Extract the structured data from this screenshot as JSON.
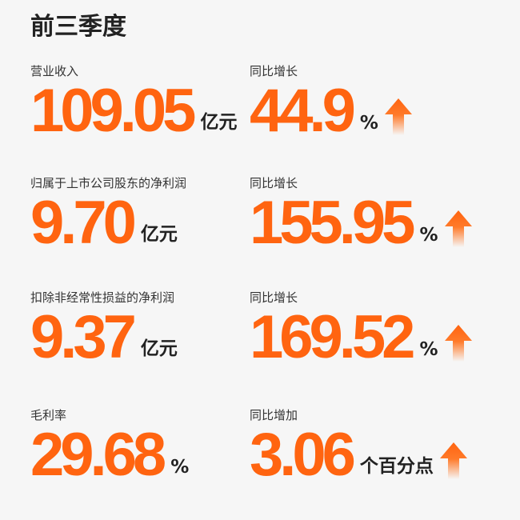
{
  "title": "前三季度",
  "accent_color": "#ff6410",
  "rows": [
    {
      "label": "营业收入",
      "value": "109.05",
      "unit": "亿元",
      "change_label": "同比增长",
      "change_value": "44.9",
      "change_unit": "%",
      "change_icon": "arrow-up-icon"
    },
    {
      "label": "归属于上市公司股东的净利润",
      "value": "9.70",
      "unit": "亿元",
      "change_label": "同比增长",
      "change_value": "155.95",
      "change_unit": "%",
      "change_icon": "arrow-up-icon"
    },
    {
      "label": "扣除非经常性损益的净利润",
      "value": "9.37",
      "unit": "亿元",
      "change_label": "同比增长",
      "change_value": "169.52",
      "change_unit": "%",
      "change_icon": "arrow-up-icon"
    },
    {
      "label": "毛利率",
      "value": "29.68",
      "unit": "%",
      "change_label": "同比增加",
      "change_value": "3.06",
      "change_unit": "个百分点",
      "change_icon": "arrow-up-icon"
    }
  ]
}
